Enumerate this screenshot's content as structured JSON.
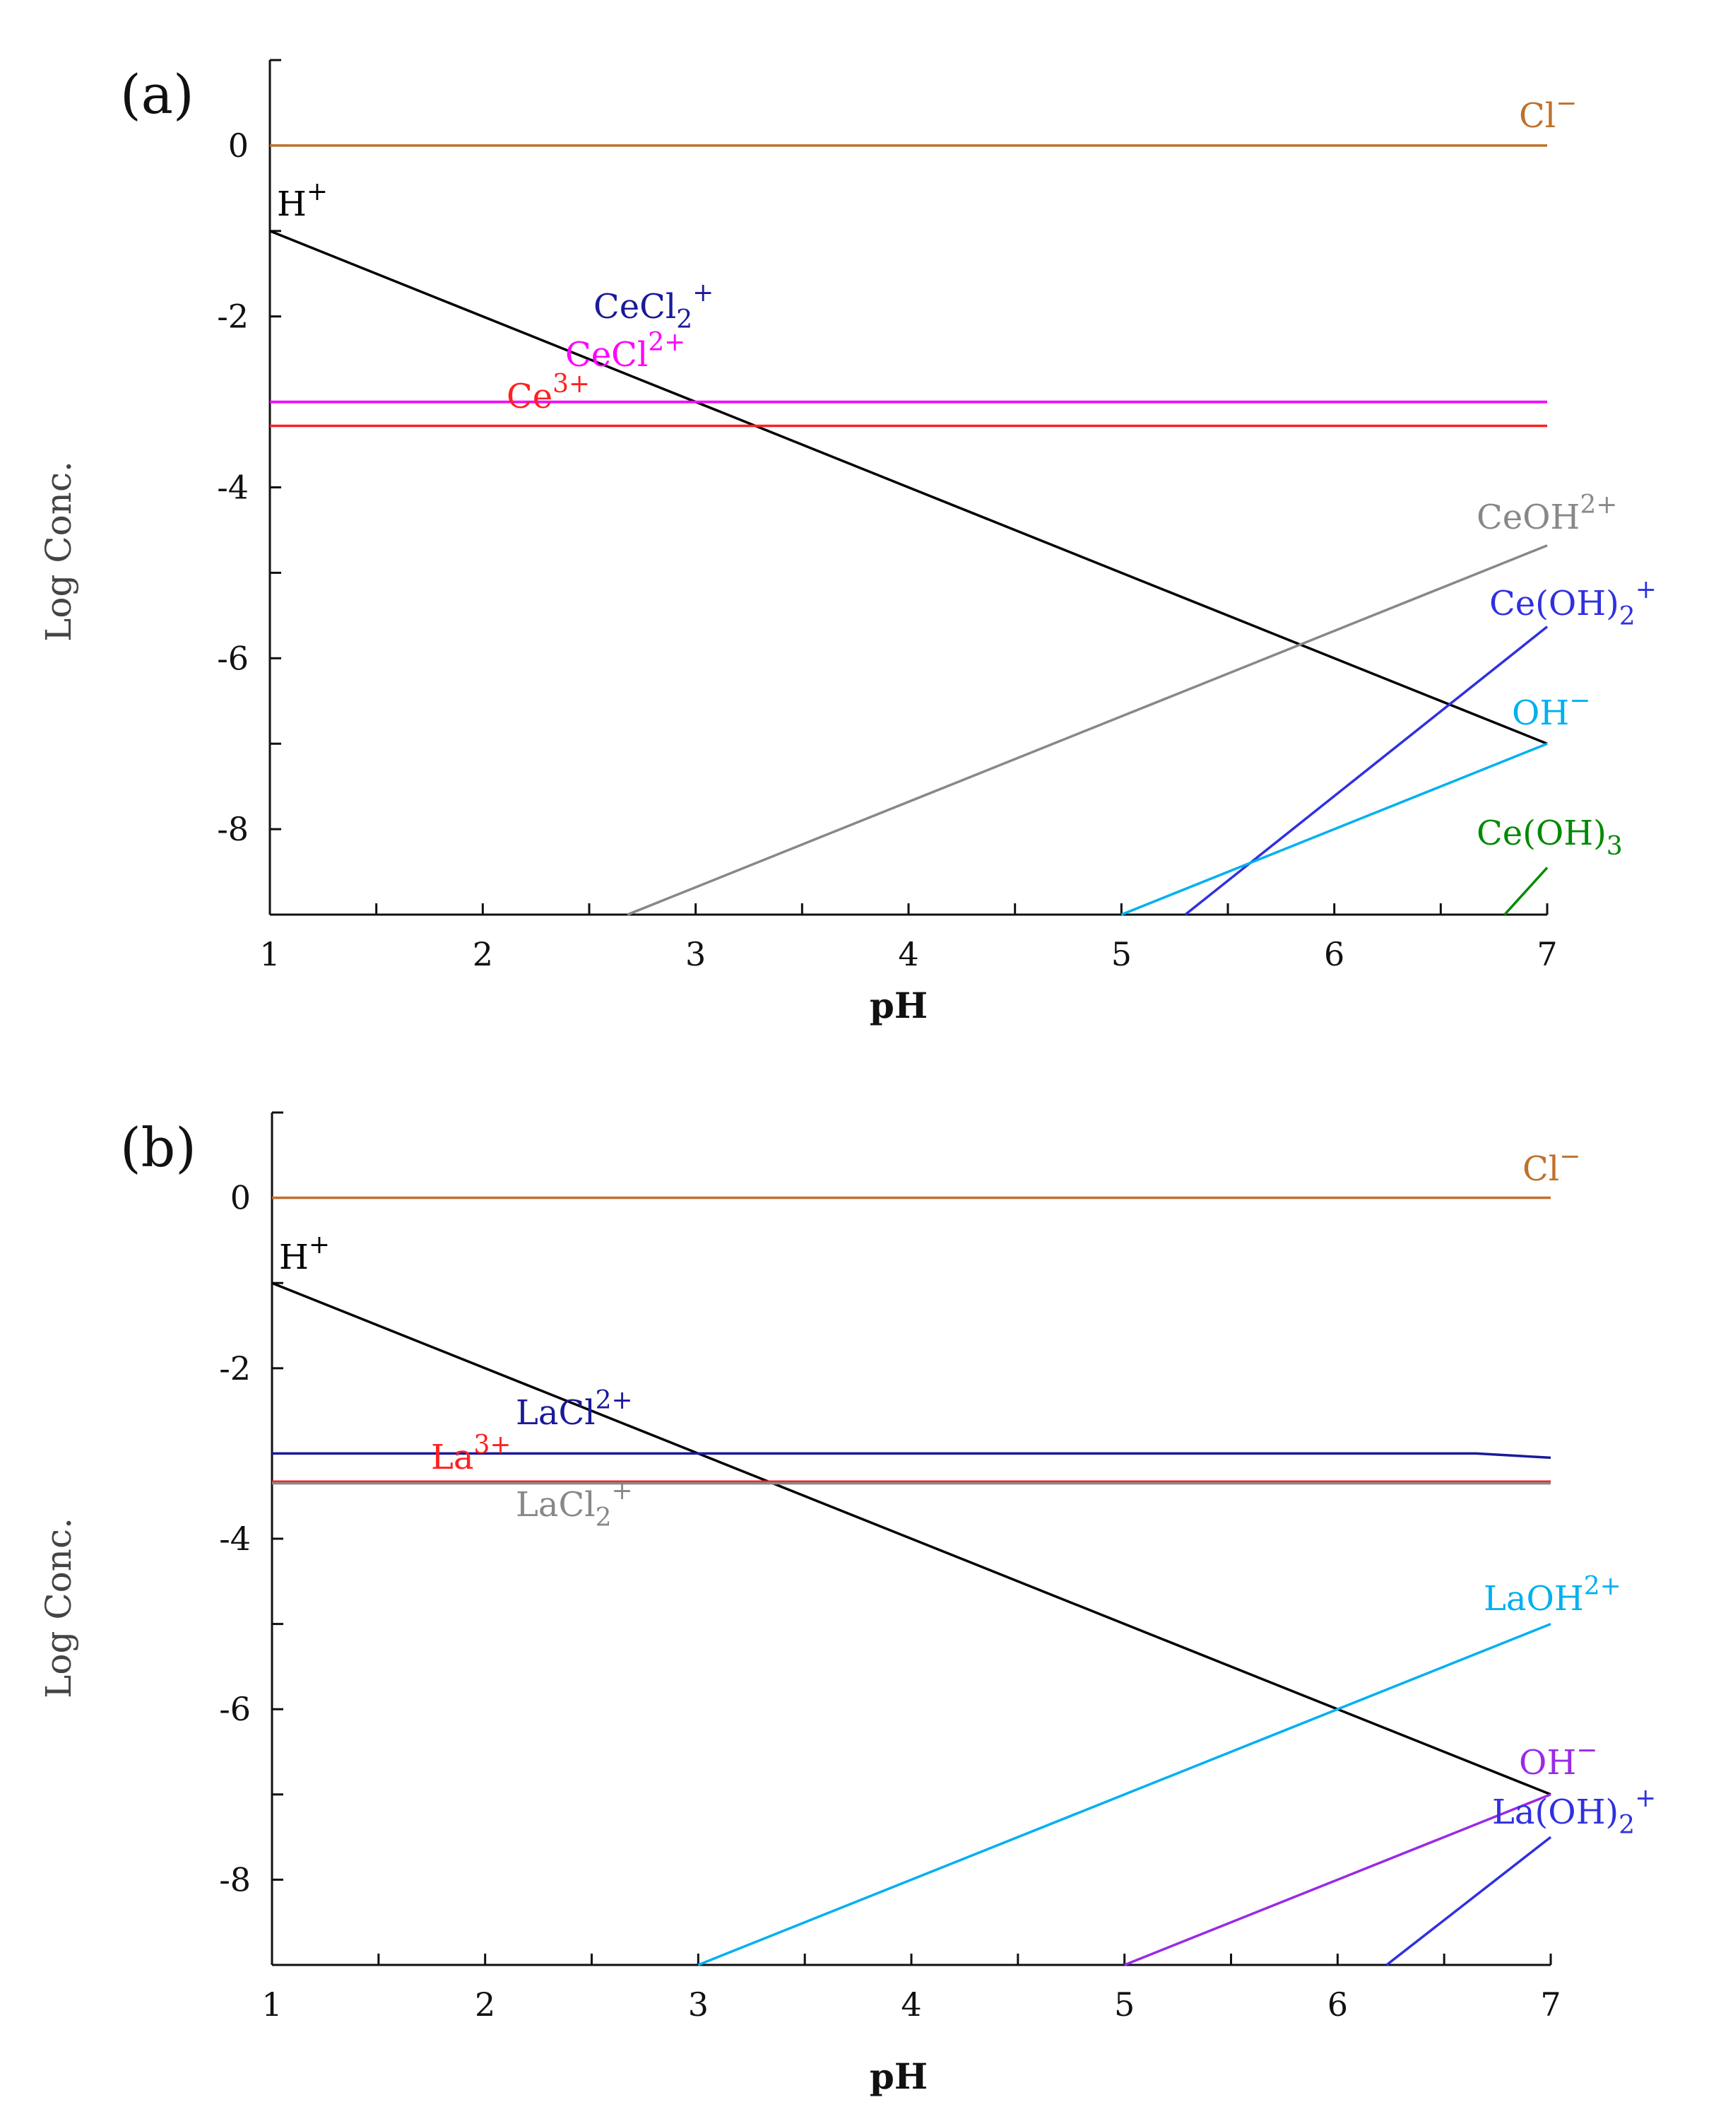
{
  "chart_data": [
    {
      "type": "line",
      "panel_label": "(a)",
      "xlabel": "pH",
      "ylabel": "Log Conc.",
      "xlim": [
        1,
        7
      ],
      "ylim": [
        -9,
        1
      ],
      "x_ticks": [
        1,
        2,
        3,
        4,
        5,
        6,
        7
      ],
      "y_ticks": [
        0,
        -2,
        -4,
        -6,
        -8
      ],
      "grid": false,
      "series": [
        {
          "name": "Cl-",
          "label_base": "Cl",
          "label_sup": "−",
          "label_sub": "",
          "label_after": "",
          "color": "#c0702a",
          "x": [
            1,
            7
          ],
          "y": [
            0,
            0
          ]
        },
        {
          "name": "H+",
          "label_base": "H",
          "label_sup": "+",
          "label_sub": "",
          "label_after": "",
          "color": "#000000",
          "x": [
            1,
            7
          ],
          "y": [
            -1,
            -7
          ]
        },
        {
          "name": "CeCl2+",
          "label_base": "CeCl",
          "label_sup": "+",
          "label_sub": "2",
          "label_after": "",
          "color": "#1a1a9a",
          "x": [
            1,
            7
          ],
          "y": [
            -3.0,
            -3.0
          ]
        },
        {
          "name": "CeCl2+ (dication)",
          "label_base": "CeCl",
          "label_sup": "2+",
          "label_sub": "",
          "label_after": "",
          "color": "#ff00ff",
          "x": [
            1,
            7
          ],
          "y": [
            -3.0,
            -3.0
          ]
        },
        {
          "name": "Ce3+",
          "label_base": "Ce",
          "label_sup": "3+",
          "label_sub": "",
          "label_after": "",
          "color": "#ff2020",
          "x": [
            1,
            7
          ],
          "y": [
            -3.28,
            -3.28
          ]
        },
        {
          "name": "CeOH2+",
          "label_base": "CeOH",
          "label_sup": "2+",
          "label_sub": "",
          "label_after": "",
          "color": "#888888",
          "x": [
            2.68,
            7
          ],
          "y": [
            -9,
            -4.68
          ]
        },
        {
          "name": "Ce(OH)2+",
          "label_base": "Ce(OH)",
          "label_sup": "+",
          "label_sub": "2",
          "label_after": "",
          "color": "#3030e0",
          "x": [
            5.3,
            7
          ],
          "y": [
            -9,
            -5.63
          ]
        },
        {
          "name": "OH-",
          "label_base": "OH",
          "label_sup": "−",
          "label_sub": "",
          "label_after": "",
          "color": "#00b0f0",
          "x": [
            5,
            7
          ],
          "y": [
            -9,
            -7
          ]
        },
        {
          "name": "Ce(OH)3",
          "label_base": "Ce(OH)",
          "label_sup": "",
          "label_sub": "3",
          "label_after": "",
          "color": "#008a00",
          "x": [
            6.8,
            7
          ],
          "y": [
            -9,
            -8.45
          ]
        }
      ]
    },
    {
      "type": "line",
      "panel_label": "(b)",
      "xlabel": "pH",
      "ylabel": "Log Conc.",
      "xlim": [
        1,
        7
      ],
      "ylim": [
        -9,
        1
      ],
      "x_ticks": [
        1,
        2,
        3,
        4,
        5,
        6,
        7
      ],
      "y_ticks": [
        0,
        -2,
        -4,
        -6,
        -8
      ],
      "grid": false,
      "series": [
        {
          "name": "Cl-",
          "label_base": "Cl",
          "label_sup": "−",
          "label_sub": "",
          "label_after": "",
          "color": "#c0702a",
          "x": [
            1,
            7
          ],
          "y": [
            0,
            0
          ]
        },
        {
          "name": "H+",
          "label_base": "H",
          "label_sup": "+",
          "label_sub": "",
          "label_after": "",
          "color": "#000000",
          "x": [
            1,
            7
          ],
          "y": [
            -1,
            -7
          ]
        },
        {
          "name": "LaCl2+",
          "label_base": "LaCl",
          "label_sup": "2+",
          "label_sub": "",
          "label_after": "",
          "color": "#1a1a9a",
          "x": [
            1,
            6.65,
            7
          ],
          "y": [
            -3.0,
            -3.0,
            -3.05
          ]
        },
        {
          "name": "La3+",
          "label_base": "La",
          "label_sup": "3+",
          "label_sub": "",
          "label_after": "",
          "color": "#ff2020",
          "x": [
            1,
            7
          ],
          "y": [
            -3.33,
            -3.33
          ]
        },
        {
          "name": "LaCl2+ (monocation)",
          "label_base": "LaCl",
          "label_sup": "+",
          "label_sub": "2",
          "label_after": "",
          "color": "#888888",
          "x": [
            1,
            7
          ],
          "y": [
            -3.35,
            -3.35
          ]
        },
        {
          "name": "LaOH2+",
          "label_base": "LaOH",
          "label_sup": "2+",
          "label_sub": "",
          "label_after": "",
          "color": "#00b0f0",
          "x": [
            3.0,
            7
          ],
          "y": [
            -9,
            -5.0
          ]
        },
        {
          "name": "OH-",
          "label_base": "OH",
          "label_sup": "−",
          "label_sub": "",
          "label_after": "",
          "color": "#9a2ae6",
          "x": [
            5,
            7
          ],
          "y": [
            -9,
            -7
          ]
        },
        {
          "name": "La(OH)2+",
          "label_base": "La(OH)",
          "label_sup": "+",
          "label_sub": "2",
          "label_after": "",
          "color": "#3030e0",
          "x": [
            6.23,
            7
          ],
          "y": [
            -9,
            -7.5
          ]
        }
      ]
    }
  ]
}
